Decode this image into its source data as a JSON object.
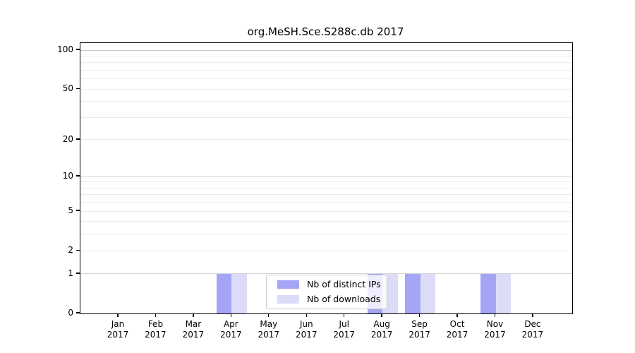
{
  "figure": {
    "title": "org.MeSH.Sce.S288c.db 2017"
  },
  "chart_data": {
    "type": "bar",
    "title": "org.MeSH.Sce.S288c.db 2017",
    "categories": [
      "Jan 2017",
      "Feb 2017",
      "Mar 2017",
      "Apr 2017",
      "May 2017",
      "Jun 2017",
      "Jul 2017",
      "Aug 2017",
      "Sep 2017",
      "Oct 2017",
      "Nov 2017",
      "Dec 2017"
    ],
    "series": [
      {
        "name": "Nb of distinct IPs",
        "color": "#a5a5f5",
        "values": [
          0,
          0,
          0,
          1,
          0,
          0,
          0,
          1,
          1,
          0,
          1,
          0
        ]
      },
      {
        "name": "Nb of downloads",
        "color": "#dcdcf8",
        "values": [
          0,
          0,
          0,
          1,
          0,
          0,
          0,
          1,
          1,
          0,
          1,
          0
        ]
      }
    ],
    "xlabel": "",
    "ylabel": "",
    "y_scale": "log1p",
    "ylim": [
      0,
      113
    ],
    "y_tick_values": [
      0,
      1,
      2,
      5,
      10,
      20,
      50,
      100
    ],
    "y_gridlines_minor": [
      2,
      3,
      4,
      5,
      6,
      7,
      8,
      9,
      20,
      30,
      40,
      50,
      60,
      70,
      80,
      90
    ],
    "y_gridlines_major": [
      1,
      10,
      100
    ],
    "grid": "horizontal",
    "legend_position": "inside-bottom-center",
    "colors": {
      "grid_minor": "#ececec",
      "grid_major": "#d4d4d4",
      "grid_top_line": "#c8c8c8",
      "frame": "#000000",
      "legend_border": "#cccccc"
    }
  }
}
